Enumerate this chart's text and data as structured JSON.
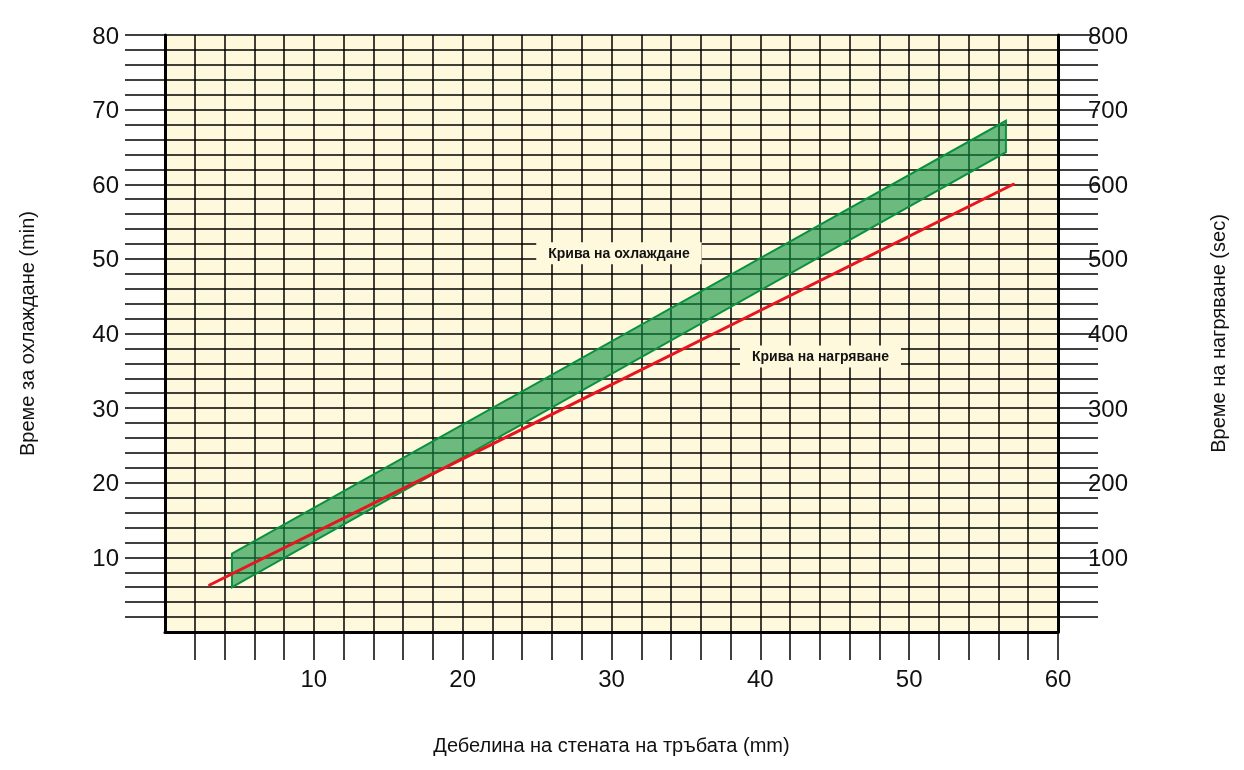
{
  "chart_data": {
    "type": "line",
    "xlabel": "Дебелина на стената на тръбата (mm)",
    "ylabel": "Време за охлаждане (min)",
    "y2label": "Време на нагряване (sec)",
    "xlim": [
      0,
      60
    ],
    "xticks": [
      {
        "value": 2,
        "label": null
      },
      {
        "value": 4,
        "label": null
      },
      {
        "value": 6,
        "label": null
      },
      {
        "value": 8,
        "label": null
      },
      10,
      {
        "value": 12,
        "label": null
      },
      {
        "value": 14,
        "label": null
      },
      {
        "value": 16,
        "label": null
      },
      {
        "value": 18,
        "label": null
      },
      20,
      {
        "value": 22,
        "label": null
      },
      {
        "value": 24,
        "label": null
      },
      {
        "value": 26,
        "label": null
      },
      {
        "value": 28,
        "label": null
      },
      30,
      {
        "value": 32,
        "label": null
      },
      {
        "value": 34,
        "label": null
      },
      {
        "value": 36,
        "label": null
      },
      {
        "value": 38,
        "label": null
      },
      40,
      {
        "value": 42,
        "label": null
      },
      {
        "value": 44,
        "label": null
      },
      {
        "value": 46,
        "label": null
      },
      {
        "value": 48,
        "label": null
      },
      50,
      {
        "value": 52,
        "label": null
      },
      {
        "value": 54,
        "label": null
      },
      {
        "value": 56,
        "label": null
      },
      {
        "value": 58,
        "label": null
      },
      60
    ],
    "ylim": [
      0,
      80
    ],
    "yticks": [
      {
        "value": 2,
        "label": null
      },
      {
        "value": 4,
        "label": null
      },
      {
        "value": 6,
        "label": null
      },
      {
        "value": 8,
        "label": null
      },
      10,
      {
        "value": 12,
        "label": null
      },
      {
        "value": 14,
        "label": null
      },
      {
        "value": 16,
        "label": null
      },
      {
        "value": 18,
        "label": null
      },
      20,
      {
        "value": 22,
        "label": null
      },
      {
        "value": 24,
        "label": null
      },
      {
        "value": 26,
        "label": null
      },
      {
        "value": 28,
        "label": null
      },
      30,
      {
        "value": 32,
        "label": null
      },
      {
        "value": 34,
        "label": null
      },
      {
        "value": 36,
        "label": null
      },
      {
        "value": 38,
        "label": null
      },
      40,
      {
        "value": 42,
        "label": null
      },
      {
        "value": 44,
        "label": null
      },
      {
        "value": 46,
        "label": null
      },
      {
        "value": 48,
        "label": null
      },
      50,
      {
        "value": 52,
        "label": null
      },
      {
        "value": 54,
        "label": null
      },
      {
        "value": 56,
        "label": null
      },
      {
        "value": 58,
        "label": null
      },
      60,
      {
        "value": 62,
        "label": null
      },
      {
        "value": 64,
        "label": null
      },
      {
        "value": 66,
        "label": null
      },
      {
        "value": 68,
        "label": null
      },
      70,
      {
        "value": 72,
        "label": null
      },
      {
        "value": 74,
        "label": null
      },
      {
        "value": 76,
        "label": null
      },
      {
        "value": 78,
        "label": null
      },
      80
    ],
    "y2lim": [
      0,
      800
    ],
    "y2ticks": [
      {
        "value": 20,
        "label": null
      },
      {
        "value": 40,
        "label": null
      },
      {
        "value": 60,
        "label": null
      },
      {
        "value": 80,
        "label": null
      },
      100,
      {
        "value": 120,
        "label": null
      },
      {
        "value": 140,
        "label": null
      },
      {
        "value": 160,
        "label": null
      },
      {
        "value": 180,
        "label": null
      },
      200,
      {
        "value": 220,
        "label": null
      },
      {
        "value": 240,
        "label": null
      },
      {
        "value": 260,
        "label": null
      },
      {
        "value": 280,
        "label": null
      },
      300,
      {
        "value": 320,
        "label": null
      },
      {
        "value": 340,
        "label": null
      },
      {
        "value": 360,
        "label": null
      },
      {
        "value": 380,
        "label": null
      },
      400,
      {
        "value": 420,
        "label": null
      },
      {
        "value": 440,
        "label": null
      },
      {
        "value": 460,
        "label": null
      },
      {
        "value": 480,
        "label": null
      },
      500,
      {
        "value": 520,
        "label": null
      },
      {
        "value": 540,
        "label": null
      },
      {
        "value": 560,
        "label": null
      },
      {
        "value": 580,
        "label": null
      },
      600,
      {
        "value": 620,
        "label": null
      },
      {
        "value": 640,
        "label": null
      },
      {
        "value": 660,
        "label": null
      },
      {
        "value": 680,
        "label": null
      },
      700,
      {
        "value": 720,
        "label": null
      },
      {
        "value": 740,
        "label": null
      },
      {
        "value": 760,
        "label": null
      },
      {
        "value": 780,
        "label": null
      },
      800
    ],
    "grid": true,
    "series": [
      {
        "color": "#0a9140",
        "x": [
          4.5,
          56.5
        ],
        "values": [
          null,
          null
        ],
        "lower": [
          6,
          64.3
        ],
        "upper": [
          10.5,
          68.5
        ]
      },
      {
        "color": "#e8141e",
        "axis": "y2",
        "x": [
          3,
          57
        ],
        "values": [
          63,
          600
        ]
      }
    ],
    "annotations": [
      "Крива на охлаждане",
      "Крива на нагряване"
    ]
  }
}
